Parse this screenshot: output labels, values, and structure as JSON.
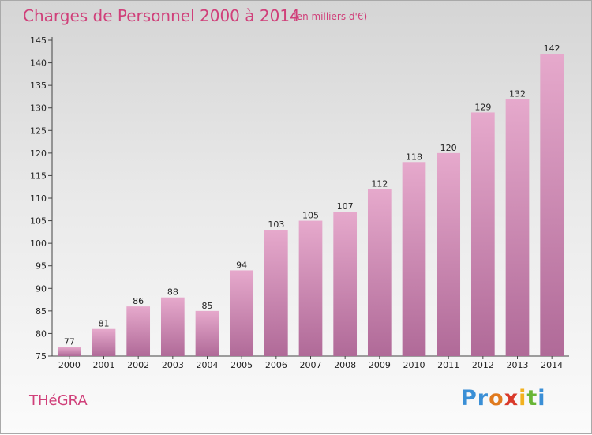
{
  "chart_data": {
    "type": "bar",
    "title": "Charges de Personnel 2000 à 2014",
    "subtitle": "(en milliers d'€)",
    "xlabel": "",
    "ylabel": "",
    "categories": [
      "2000",
      "2001",
      "2002",
      "2003",
      "2004",
      "2005",
      "2006",
      "2007",
      "2008",
      "2009",
      "2010",
      "2011",
      "2012",
      "2013",
      "2014"
    ],
    "values": [
      77,
      81,
      86,
      88,
      85,
      94,
      103,
      105,
      107,
      112,
      118,
      120,
      129,
      132,
      142
    ],
    "ylim": [
      75,
      145
    ],
    "yticks": [
      75,
      80,
      85,
      90,
      95,
      100,
      105,
      110,
      115,
      120,
      125,
      130,
      135,
      140,
      145
    ],
    "grid": false,
    "colors": {
      "bar_top": "#e6a9cc",
      "bar_bottom": "#b06a98",
      "title": "#d0407a"
    }
  },
  "footer": {
    "commune": "THéGRA",
    "brand_letters": [
      {
        "ch": "P",
        "color": "#3a8fd6"
      },
      {
        "ch": "r",
        "color": "#3a8fd6"
      },
      {
        "ch": "o",
        "color": "#e07a1e"
      },
      {
        "ch": "x",
        "color": "#d93a2b"
      },
      {
        "ch": "i",
        "color": "#f2b11f"
      },
      {
        "ch": "t",
        "color": "#68b536"
      },
      {
        "ch": "i",
        "color": "#3a8fd6"
      }
    ]
  }
}
